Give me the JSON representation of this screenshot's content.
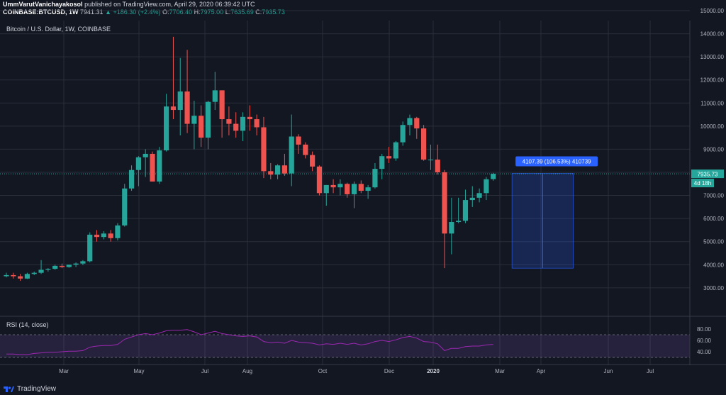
{
  "header": {
    "line1_user": "UmmVarutVanichayakosol",
    "line1_rest": " published on TradingView.com, April 29, 2020 06:39:42 UTC",
    "symbol": "COINBASE:BTCUSD, 1W",
    "last": "7941.31",
    "change": "▲ +186.30 (+2.4%)",
    "o_label": "O:",
    "o_value": "7706.40",
    "h_label": "H:",
    "h_value": "7975.00",
    "l_label": "L:",
    "l_value": "7635.69",
    "c_label": "C:",
    "c_value": "7935.73"
  },
  "pane_title": "Bitcoin / U.S. Dollar, 1W, COINBASE",
  "rsi_title": "RSI (14, close)",
  "footer_brand": "TradingView",
  "colors": {
    "up": "#26a69a",
    "down": "#ef5350",
    "rsi": "#9c27b0",
    "measure_label": "#2962ff",
    "price_tag": "#26a69a"
  },
  "chart_data": [
    {
      "type": "candlestick",
      "title": "Bitcoin / U.S. Dollar, 1W, COINBASE",
      "y_ticks": [
        3000,
        4000,
        5000,
        6000,
        7000,
        8000,
        9000,
        10000,
        11000,
        12000,
        13000,
        14000,
        15000
      ],
      "ylim": [
        2300,
        15100
      ],
      "x_tick_labels": [
        "Mar",
        "May",
        "Jul",
        "Aug",
        "Oct",
        "Dec",
        "2020",
        "Mar",
        "Apr",
        "Jun",
        "Jul"
      ],
      "grid": true,
      "candles": [
        {
          "o": 3500,
          "h": 3650,
          "l": 3450,
          "c": 3550
        },
        {
          "o": 3550,
          "h": 3650,
          "l": 3400,
          "c": 3500
        },
        {
          "o": 3500,
          "h": 3600,
          "l": 3300,
          "c": 3400
        },
        {
          "o": 3400,
          "h": 3650,
          "l": 3380,
          "c": 3600
        },
        {
          "o": 3600,
          "h": 3700,
          "l": 3550,
          "c": 3650
        },
        {
          "o": 3650,
          "h": 4200,
          "l": 3600,
          "c": 3780
        },
        {
          "o": 3780,
          "h": 3850,
          "l": 3700,
          "c": 3820
        },
        {
          "o": 3820,
          "h": 4000,
          "l": 3780,
          "c": 3950
        },
        {
          "o": 3950,
          "h": 4050,
          "l": 3850,
          "c": 3900
        },
        {
          "o": 3900,
          "h": 4000,
          "l": 3870,
          "c": 4000
        },
        {
          "o": 4000,
          "h": 4100,
          "l": 3900,
          "c": 4050
        },
        {
          "o": 4050,
          "h": 4200,
          "l": 3980,
          "c": 4150
        },
        {
          "o": 4150,
          "h": 5400,
          "l": 4100,
          "c": 5300
        },
        {
          "o": 5300,
          "h": 5500,
          "l": 5000,
          "c": 5200
        },
        {
          "o": 5200,
          "h": 5450,
          "l": 5100,
          "c": 5350
        },
        {
          "o": 5350,
          "h": 5500,
          "l": 5000,
          "c": 5150
        },
        {
          "o": 5150,
          "h": 5800,
          "l": 5050,
          "c": 5700
        },
        {
          "o": 5700,
          "h": 7500,
          "l": 5650,
          "c": 7300
        },
        {
          "o": 7300,
          "h": 8300,
          "l": 7200,
          "c": 8100
        },
        {
          "o": 8100,
          "h": 8700,
          "l": 7400,
          "c": 8650
        },
        {
          "o": 8650,
          "h": 9000,
          "l": 7800,
          "c": 8800
        },
        {
          "o": 8800,
          "h": 8900,
          "l": 7600,
          "c": 7600
        },
        {
          "o": 7600,
          "h": 9100,
          "l": 7500,
          "c": 8950
        },
        {
          "o": 8950,
          "h": 11400,
          "l": 8900,
          "c": 10850
        },
        {
          "o": 10850,
          "h": 13870,
          "l": 10300,
          "c": 10700
        },
        {
          "o": 10700,
          "h": 12950,
          "l": 9600,
          "c": 11500
        },
        {
          "o": 11500,
          "h": 13300,
          "l": 9700,
          "c": 10100
        },
        {
          "o": 10100,
          "h": 11100,
          "l": 9000,
          "c": 10450
        },
        {
          "o": 10450,
          "h": 10900,
          "l": 9100,
          "c": 9500
        },
        {
          "o": 9500,
          "h": 11100,
          "l": 9000,
          "c": 11050
        },
        {
          "o": 11050,
          "h": 12350,
          "l": 10700,
          "c": 11550
        },
        {
          "o": 11550,
          "h": 11550,
          "l": 9500,
          "c": 10300
        },
        {
          "o": 10300,
          "h": 10850,
          "l": 9600,
          "c": 10100
        },
        {
          "o": 10100,
          "h": 10600,
          "l": 9500,
          "c": 9800
        },
        {
          "o": 9800,
          "h": 10600,
          "l": 9350,
          "c": 10400
        },
        {
          "o": 10400,
          "h": 10900,
          "l": 9800,
          "c": 10300
        },
        {
          "o": 10300,
          "h": 10500,
          "l": 9600,
          "c": 9950
        },
        {
          "o": 9950,
          "h": 10400,
          "l": 7750,
          "c": 8050
        },
        {
          "o": 8050,
          "h": 8400,
          "l": 7700,
          "c": 7900
        },
        {
          "o": 7900,
          "h": 8350,
          "l": 7700,
          "c": 8300
        },
        {
          "o": 8300,
          "h": 8800,
          "l": 7850,
          "c": 7950
        },
        {
          "o": 7950,
          "h": 10500,
          "l": 7400,
          "c": 9550
        },
        {
          "o": 9550,
          "h": 9650,
          "l": 8800,
          "c": 9200
        },
        {
          "o": 9200,
          "h": 9300,
          "l": 8600,
          "c": 8750
        },
        {
          "o": 8750,
          "h": 8900,
          "l": 8050,
          "c": 8250
        },
        {
          "o": 8250,
          "h": 8300,
          "l": 7000,
          "c": 7100
        },
        {
          "o": 7100,
          "h": 7450,
          "l": 6550,
          "c": 7450
        },
        {
          "o": 7450,
          "h": 7700,
          "l": 7100,
          "c": 7350
        },
        {
          "o": 7350,
          "h": 7700,
          "l": 7000,
          "c": 7500
        },
        {
          "o": 7500,
          "h": 7550,
          "l": 6900,
          "c": 7050
        },
        {
          "o": 7050,
          "h": 7600,
          "l": 6450,
          "c": 7500
        },
        {
          "o": 7500,
          "h": 7650,
          "l": 7100,
          "c": 7200
        },
        {
          "o": 7200,
          "h": 7450,
          "l": 6850,
          "c": 7350
        },
        {
          "o": 7350,
          "h": 8400,
          "l": 7300,
          "c": 8150
        },
        {
          "o": 8150,
          "h": 8800,
          "l": 7700,
          "c": 8700
        },
        {
          "o": 8700,
          "h": 9100,
          "l": 8400,
          "c": 8600
        },
        {
          "o": 8600,
          "h": 9350,
          "l": 8500,
          "c": 9300
        },
        {
          "o": 9300,
          "h": 10200,
          "l": 9150,
          "c": 10050
        },
        {
          "o": 10050,
          "h": 10500,
          "l": 9600,
          "c": 10350
        },
        {
          "o": 10350,
          "h": 10400,
          "l": 9450,
          "c": 9900
        },
        {
          "o": 9900,
          "h": 10050,
          "l": 8500,
          "c": 8550
        },
        {
          "o": 8550,
          "h": 9200,
          "l": 8100,
          "c": 8550
        },
        {
          "o": 8550,
          "h": 9200,
          "l": 7900,
          "c": 8000
        },
        {
          "o": 8000,
          "h": 8100,
          "l": 3850,
          "c": 5350
        },
        {
          "o": 5350,
          "h": 6900,
          "l": 4450,
          "c": 5850
        },
        {
          "o": 5850,
          "h": 6900,
          "l": 5800,
          "c": 5900
        },
        {
          "o": 5900,
          "h": 7250,
          "l": 5800,
          "c": 6800
        },
        {
          "o": 6800,
          "h": 7400,
          "l": 6500,
          "c": 6900
        },
        {
          "o": 6900,
          "h": 7300,
          "l": 6700,
          "c": 7100
        },
        {
          "o": 7100,
          "h": 7800,
          "l": 6800,
          "c": 7700
        },
        {
          "o": 7706.4,
          "h": 7975,
          "l": 7635.69,
          "c": 7935.73
        }
      ],
      "last_price": "7935.73",
      "countdown": "4d 18h",
      "measure": {
        "label": "4107.39 (106.53%) 410739",
        "from_price": 3850,
        "to_price": 7955
      }
    },
    {
      "type": "line",
      "title": "RSI (14, close)",
      "y_ticks": [
        40,
        60,
        80
      ],
      "band": [
        30,
        70
      ],
      "ylim": [
        22,
        88
      ],
      "values": [
        36,
        36,
        35,
        35,
        37,
        38,
        39,
        39,
        40,
        41,
        41,
        42,
        48,
        50,
        51,
        51,
        53,
        62,
        66,
        70,
        72,
        70,
        73,
        77,
        78,
        78,
        79,
        75,
        70,
        73,
        76,
        72,
        70,
        68,
        67,
        68,
        66,
        58,
        56,
        57,
        55,
        60,
        57,
        56,
        55,
        52,
        54,
        53,
        55,
        53,
        55,
        52,
        54,
        58,
        60,
        58,
        61,
        65,
        67,
        64,
        58,
        57,
        54,
        42,
        46,
        46,
        49,
        50,
        50,
        52,
        53
      ]
    }
  ]
}
